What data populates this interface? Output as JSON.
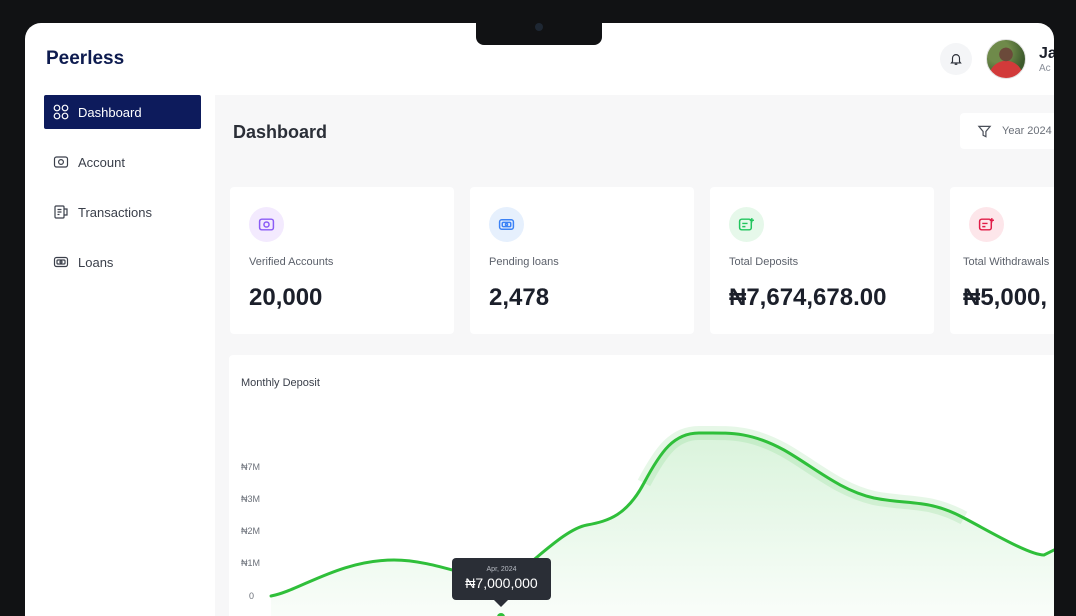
{
  "brand": "Peerless",
  "sidebar": {
    "items": [
      {
        "label": "Dashboard",
        "icon": "grid-icon"
      },
      {
        "label": "Account",
        "icon": "wallet-icon"
      },
      {
        "label": "Transactions",
        "icon": "receipt-icon"
      },
      {
        "label": "Loans",
        "icon": "cash-icon"
      }
    ]
  },
  "header": {
    "user_name": "Ja",
    "user_role": "Ac"
  },
  "page": {
    "title": "Dashboard",
    "filter_label": "Year 2024"
  },
  "stats": [
    {
      "label": "Verified Accounts",
      "value": "20,000",
      "color": "#8b5cf6",
      "bg": "#f3eafe"
    },
    {
      "label": "Pending loans",
      "value": "2,478",
      "color": "#3b82f6",
      "bg": "#e6f0fd"
    },
    {
      "label": "Total Deposits",
      "value": "₦7,674,678.00",
      "color": "#22c55e",
      "bg": "#e6f8ea"
    },
    {
      "label": "Total Withdrawals",
      "value": "₦5,000,",
      "color": "#e11d48",
      "bg": "#fde6ea"
    }
  ],
  "chart_data": {
    "type": "area",
    "title": "Monthly Deposit",
    "y_ticks": [
      "₦7M",
      "₦3M",
      "₦2M",
      "₦1M",
      "0"
    ],
    "series_color": "#2fbf3a",
    "tooltip": {
      "date": "Apr, 2024",
      "value": "₦7,000,000"
    }
  }
}
